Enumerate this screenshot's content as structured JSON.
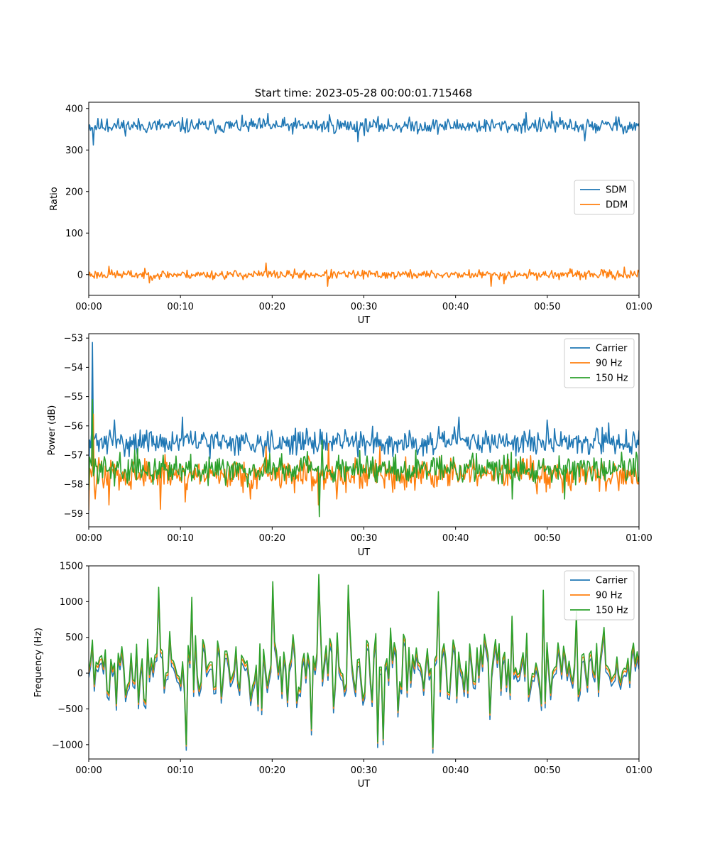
{
  "figure": {
    "title": "Start time: 2023-05-28 00:00:01.715468"
  },
  "colors": {
    "blue": "#1f77b4",
    "orange": "#ff7f0e",
    "green": "#2ca02c"
  },
  "chart_data": [
    {
      "type": "line",
      "title": "Start time: 2023-05-28 00:00:01.715468",
      "xlabel": "UT",
      "ylabel": "Ratio",
      "x_range_minutes": [
        0,
        60
      ],
      "xticks": [
        "00:00",
        "00:10",
        "00:20",
        "00:30",
        "00:40",
        "00:50",
        "01:00"
      ],
      "ylim": [
        -50,
        415
      ],
      "yticks": [
        0,
        100,
        200,
        300,
        400
      ],
      "legend": "center-right",
      "grid": false,
      "series": [
        {
          "name": "SDM",
          "color": "#1f77b4",
          "mean": 358,
          "noise_amplitude": 15,
          "n_points": 600,
          "seed": 11,
          "spikes": [
            [
              0.5,
              312
            ],
            [
              2.0,
              375
            ],
            [
              10.2,
              378
            ],
            [
              19.5,
              388
            ],
            [
              26.2,
              385
            ],
            [
              29.3,
              320
            ],
            [
              47.7,
              390
            ],
            [
              50.5,
              393
            ],
            [
              54.1,
              322
            ],
            [
              57.5,
              380
            ]
          ]
        },
        {
          "name": "DDM",
          "color": "#ff7f0e",
          "mean": 0,
          "noise_amplitude": 9,
          "n_points": 600,
          "seed": 23,
          "spikes": [
            [
              2.2,
              20
            ],
            [
              6.6,
              -20
            ],
            [
              19.3,
              28
            ],
            [
              26.0,
              -28
            ],
            [
              43.9,
              -28
            ],
            [
              45.3,
              -22
            ],
            [
              58.4,
              18
            ]
          ]
        }
      ]
    },
    {
      "type": "line",
      "xlabel": "UT",
      "ylabel": "Power (dB)",
      "x_range_minutes": [
        0,
        60
      ],
      "xticks": [
        "00:00",
        "00:10",
        "00:20",
        "00:30",
        "00:40",
        "00:50",
        "01:00"
      ],
      "ylim": [
        -59.45,
        -52.85
      ],
      "yticks": [
        -59,
        -58,
        -57,
        -56,
        -55,
        -54,
        -53
      ],
      "legend": "top-right",
      "grid": false,
      "series": [
        {
          "name": "Carrier",
          "color": "#1f77b4",
          "mean": -56.55,
          "noise_amplitude": 0.35,
          "n_points": 600,
          "seed": 31,
          "spikes": [
            [
              0.0,
              -57.5
            ],
            [
              0.4,
              -53.15
            ],
            [
              0.7,
              -56.4
            ],
            [
              2.8,
              -55.8
            ],
            [
              10.2,
              -55.7
            ],
            [
              40.4,
              -55.7
            ],
            [
              50.0,
              -55.8
            ],
            [
              56.7,
              -55.9
            ]
          ]
        },
        {
          "name": "90 Hz",
          "color": "#ff7f0e",
          "mean": -57.65,
          "noise_amplitude": 0.45,
          "n_points": 600,
          "seed": 47,
          "spikes": [
            [
              0.0,
              -58.9
            ],
            [
              0.5,
              -55.6
            ],
            [
              0.7,
              -58.5
            ],
            [
              2.2,
              -58.7
            ],
            [
              7.8,
              -58.85
            ],
            [
              10.5,
              -58.6
            ],
            [
              17.6,
              -58.5
            ],
            [
              19.3,
              -56.7
            ],
            [
              25.0,
              -58.7
            ],
            [
              26.1,
              -56.6
            ],
            [
              27.0,
              -58.5
            ],
            [
              31.8,
              -56.7
            ]
          ]
        },
        {
          "name": "150 Hz",
          "color": "#2ca02c",
          "mean": -57.45,
          "noise_amplitude": 0.4,
          "n_points": 600,
          "seed": 59,
          "spikes": [
            [
              0.0,
              -58.2
            ],
            [
              0.4,
              -55.1
            ],
            [
              25.1,
              -59.1
            ],
            [
              25.4,
              -56.5
            ],
            [
              46.2,
              -58.5
            ],
            [
              51.9,
              -58.5
            ],
            [
              59.7,
              -56.9
            ]
          ]
        }
      ]
    },
    {
      "type": "line",
      "xlabel": "UT",
      "ylabel": "Frequency (Hz)",
      "x_range_minutes": [
        0,
        60
      ],
      "xticks": [
        "00:00",
        "00:10",
        "00:20",
        "00:30",
        "00:40",
        "00:50",
        "01:00"
      ],
      "ylim": [
        -1200,
        1500
      ],
      "yticks": [
        -1000,
        -500,
        0,
        500,
        1000,
        1500
      ],
      "legend": "top-right",
      "grid": false,
      "series": [
        {
          "name": "Carrier",
          "color": "#1f77b4",
          "offset": -100
        },
        {
          "name": "90 Hz",
          "color": "#ff7f0e",
          "offset": -40
        },
        {
          "name": "150 Hz",
          "color": "#2ca02c",
          "offset": 0
        }
      ],
      "base_signal": {
        "mean": 80,
        "noise_amplitude": 420,
        "n_points": 300,
        "seed": 71,
        "spikes": [
          [
            7.7,
            1200
          ],
          [
            10.6,
            -1000
          ],
          [
            11.2,
            1060
          ],
          [
            20.1,
            1280
          ],
          [
            24.2,
            -780
          ],
          [
            25.0,
            1380
          ],
          [
            28.2,
            1230
          ],
          [
            31.6,
            -960
          ],
          [
            32.1,
            -920
          ],
          [
            37.5,
            -1040
          ],
          [
            38.2,
            1140
          ],
          [
            49.6,
            1160
          ],
          [
            53.2,
            860
          ],
          [
            59.8,
            300
          ]
        ]
      }
    }
  ]
}
